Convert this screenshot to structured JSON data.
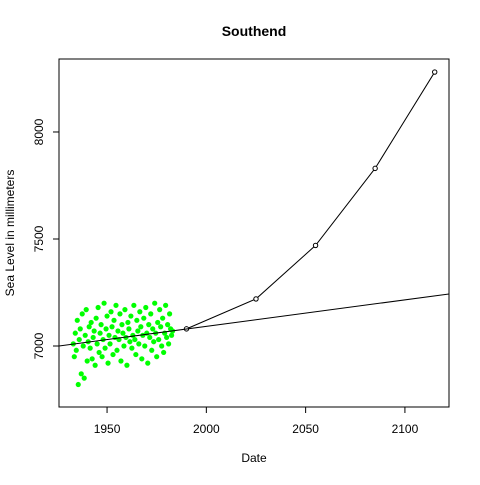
{
  "chart_data": {
    "type": "scatter",
    "title": "Southend",
    "x_label": "Date",
    "y_label": "Sea Level in millimeters",
    "xlim": [
      1925.8,
      2122.2
    ],
    "ylim": [
      6715,
      8341
    ],
    "xticks": [
      1950,
      2000,
      2050,
      2100
    ],
    "yticks": [
      7000,
      7500,
      8000
    ],
    "points": {
      "color": "#00ff00",
      "x": [
        1933,
        1933.5,
        1934,
        1934.5,
        1935,
        1935.5,
        1936,
        1936.5,
        1937,
        1937.5,
        1938,
        1938.5,
        1939,
        1939.5,
        1940,
        1940.5,
        1941,
        1941.5,
        1942,
        1942.5,
        1943,
        1943.5,
        1944,
        1944.5,
        1945,
        1945.5,
        1946,
        1946.5,
        1947,
        1947.5,
        1948,
        1948.5,
        1949,
        1949.5,
        1950,
        1950.5,
        1951,
        1951.5,
        1952,
        1952.5,
        1953,
        1953.5,
        1954,
        1954.5,
        1955,
        1955.5,
        1956,
        1956.5,
        1957,
        1957.5,
        1958,
        1958.5,
        1959,
        1959.5,
        1960,
        1960.5,
        1961,
        1961.5,
        1962,
        1962.5,
        1963,
        1963.5,
        1964,
        1964.5,
        1965,
        1965.5,
        1966,
        1966.5,
        1967,
        1967.5,
        1968,
        1968.5,
        1969,
        1969.5,
        1970,
        1970.5,
        1971,
        1971.5,
        1972,
        1972.5,
        1973,
        1973.5,
        1974,
        1974.5,
        1975,
        1975.5,
        1976,
        1976.5,
        1977,
        1977.5,
        1978,
        1978.5,
        1979,
        1979.5,
        1980,
        1980.5,
        1981,
        1981.5,
        1982,
        1982.5,
        1983
      ],
      "values": [
        7010,
        6950,
        7060,
        6980,
        7120,
        6820,
        7030,
        7080,
        6870,
        7150,
        7000,
        6850,
        7050,
        7170,
        6930,
        7020,
        7090,
        6990,
        7110,
        6940,
        7040,
        7070,
        6910,
        7130,
        7010,
        7180,
        6970,
        7060,
        7100,
        6950,
        7030,
        7200,
        6990,
        7080,
        7140,
        6920,
        7050,
        7010,
        7160,
        7090,
        6960,
        7120,
        7040,
        7190,
        6980,
        7070,
        7030,
        7150,
        6930,
        7100,
        7060,
        7000,
        7170,
        7040,
        6910,
        7110,
        7080,
        7020,
        7140,
        6990,
        7050,
        7190,
        7030,
        6960,
        7120,
        7070,
        7010,
        7160,
        7090,
        6940,
        7050,
        7130,
        7000,
        7180,
        7060,
        6920,
        7100,
        7040,
        7150,
        6980,
        7080,
        7020,
        7200,
        7060,
        6950,
        7110,
        7030,
        7170,
        7090,
        7000,
        7130,
        6970,
        7060,
        7190,
        7040,
        7100,
        7010,
        7150,
        7080,
        7050,
        7070
      ]
    },
    "lines": [
      {
        "color": "#000000",
        "markers": true,
        "x": [
          1990,
          2025,
          2055,
          2085,
          2115
        ],
        "values": [
          7080,
          7220,
          7470,
          7830,
          8280
        ]
      },
      {
        "color": "#000000",
        "markers": false,
        "x": [
          1925.8,
          2122.2
        ],
        "values": [
          7000,
          7243
        ]
      }
    ]
  }
}
